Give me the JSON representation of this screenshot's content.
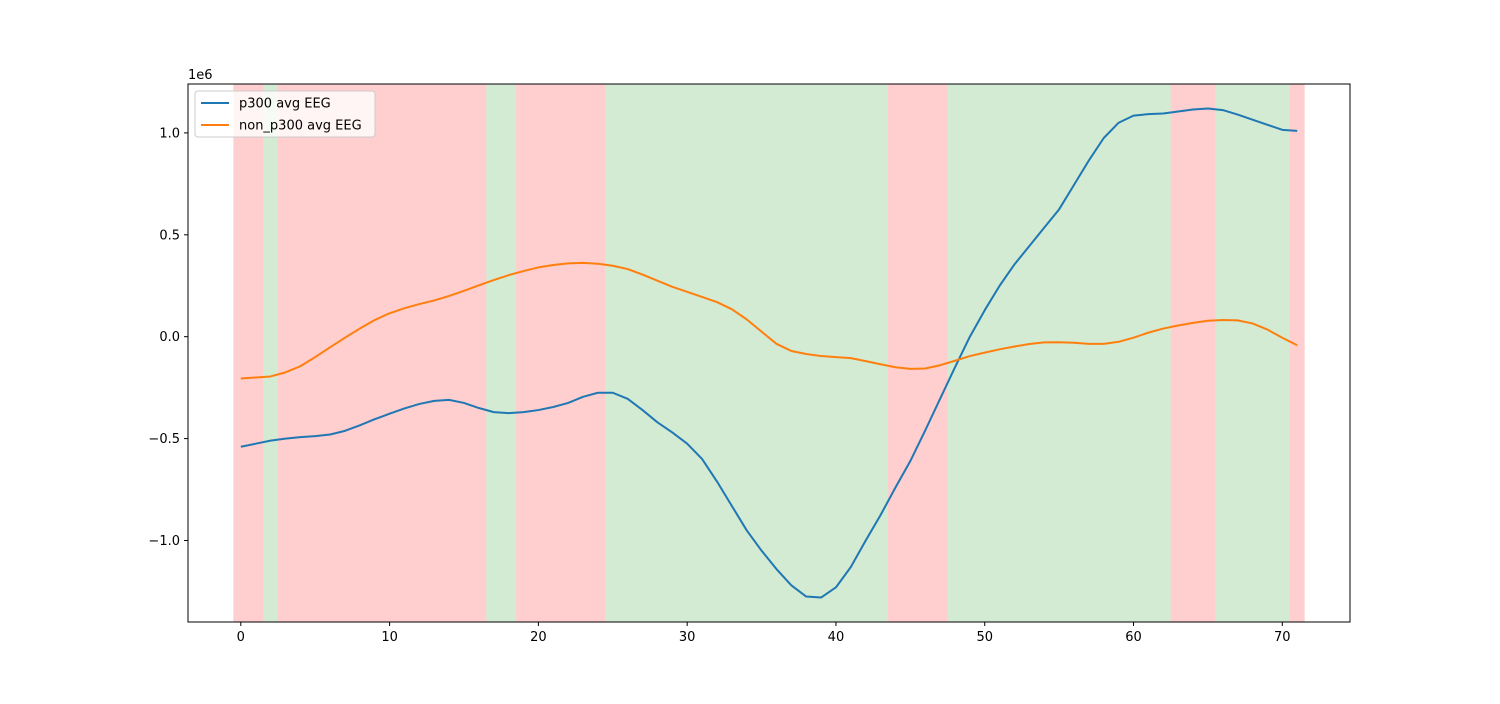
{
  "chart_data": {
    "type": "line",
    "title": "",
    "xlabel": "",
    "ylabel": "",
    "y_offset_label": "1e6",
    "xlim": [
      -3.55,
      74.55
    ],
    "ylim": [
      -1.4,
      1.24
    ],
    "x_ticks": [
      0,
      10,
      20,
      30,
      40,
      50,
      60,
      70
    ],
    "x_tick_labels": [
      "0",
      "10",
      "20",
      "30",
      "40",
      "50",
      "60",
      "70"
    ],
    "y_ticks": [
      -1.0,
      -0.5,
      0.0,
      0.5,
      1.0
    ],
    "y_tick_labels": [
      "−1.0",
      "−0.5",
      "0.0",
      "0.5",
      "1.0"
    ],
    "grid": false,
    "legend_position": "top-left",
    "background_bands": {
      "description_colors": {
        "red": "#ff9999",
        "green": "#a3d3a3"
      },
      "segments": [
        {
          "start": -0.5,
          "end": 1.5,
          "color": "red"
        },
        {
          "start": 1.5,
          "end": 2.5,
          "color": "green"
        },
        {
          "start": 2.5,
          "end": 16.5,
          "color": "red"
        },
        {
          "start": 16.5,
          "end": 18.5,
          "color": "green"
        },
        {
          "start": 18.5,
          "end": 24.5,
          "color": "red"
        },
        {
          "start": 24.5,
          "end": 43.5,
          "color": "green"
        },
        {
          "start": 43.5,
          "end": 47.5,
          "color": "red"
        },
        {
          "start": 47.5,
          "end": 62.5,
          "color": "green"
        },
        {
          "start": 62.5,
          "end": 65.5,
          "color": "red"
        },
        {
          "start": 65.5,
          "end": 70.5,
          "color": "green"
        },
        {
          "start": 70.5,
          "end": 71.5,
          "color": "red"
        }
      ]
    },
    "series": [
      {
        "name": "p300 avg EEG",
        "color": "#1f77b4",
        "x": [
          0,
          1,
          2,
          3,
          4,
          5,
          6,
          7,
          8,
          9,
          10,
          11,
          12,
          13,
          14,
          15,
          16,
          17,
          18,
          19,
          20,
          21,
          22,
          23,
          24,
          25,
          26,
          27,
          28,
          29,
          30,
          31,
          32,
          33,
          34,
          35,
          36,
          37,
          38,
          39,
          40,
          41,
          42,
          43,
          44,
          45,
          46,
          47,
          48,
          49,
          50,
          51,
          52,
          53,
          54,
          55,
          56,
          57,
          58,
          59,
          60,
          61,
          62,
          63,
          64,
          65,
          66,
          67,
          68,
          69,
          70,
          71
        ],
        "values": [
          -0.54,
          -0.525,
          -0.51,
          -0.5,
          -0.493,
          -0.488,
          -0.48,
          -0.462,
          -0.435,
          -0.405,
          -0.378,
          -0.352,
          -0.33,
          -0.315,
          -0.31,
          -0.325,
          -0.35,
          -0.37,
          -0.375,
          -0.37,
          -0.36,
          -0.345,
          -0.325,
          -0.295,
          -0.275,
          -0.275,
          -0.305,
          -0.36,
          -0.42,
          -0.47,
          -0.525,
          -0.6,
          -0.71,
          -0.83,
          -0.95,
          -1.05,
          -1.14,
          -1.22,
          -1.275,
          -1.28,
          -1.23,
          -1.13,
          -1.0,
          -0.875,
          -0.74,
          -0.61,
          -0.46,
          -0.305,
          -0.15,
          0.0,
          0.13,
          0.25,
          0.355,
          0.445,
          0.535,
          0.625,
          0.745,
          0.865,
          0.975,
          1.05,
          1.085,
          1.092,
          1.095,
          1.105,
          1.115,
          1.12,
          1.112,
          1.09,
          1.065,
          1.04,
          1.015,
          1.01
        ]
      },
      {
        "name": "non_p300 avg EEG",
        "color": "#ff7f0e",
        "x": [
          0,
          1,
          2,
          3,
          4,
          5,
          6,
          7,
          8,
          9,
          10,
          11,
          12,
          13,
          14,
          15,
          16,
          17,
          18,
          19,
          20,
          21,
          22,
          23,
          24,
          25,
          26,
          27,
          28,
          29,
          30,
          31,
          32,
          33,
          34,
          35,
          36,
          37,
          38,
          39,
          40,
          41,
          42,
          43,
          44,
          45,
          46,
          47,
          48,
          49,
          50,
          51,
          52,
          53,
          54,
          55,
          56,
          57,
          58,
          59,
          60,
          61,
          62,
          63,
          64,
          65,
          66,
          67,
          68,
          69,
          70,
          71
        ],
        "values": [
          -0.205,
          -0.2,
          -0.195,
          -0.175,
          -0.145,
          -0.1,
          -0.052,
          -0.005,
          0.04,
          0.082,
          0.115,
          0.14,
          0.16,
          0.178,
          0.2,
          0.225,
          0.252,
          0.278,
          0.302,
          0.322,
          0.34,
          0.352,
          0.36,
          0.362,
          0.358,
          0.348,
          0.332,
          0.305,
          0.275,
          0.245,
          0.22,
          0.195,
          0.17,
          0.135,
          0.085,
          0.025,
          -0.035,
          -0.07,
          -0.085,
          -0.095,
          -0.1,
          -0.105,
          -0.12,
          -0.135,
          -0.15,
          -0.158,
          -0.156,
          -0.14,
          -0.118,
          -0.095,
          -0.078,
          -0.062,
          -0.048,
          -0.036,
          -0.028,
          -0.027,
          -0.03,
          -0.035,
          -0.035,
          -0.025,
          -0.005,
          0.02,
          0.04,
          0.055,
          0.068,
          0.078,
          0.082,
          0.08,
          0.065,
          0.035,
          -0.005,
          -0.042
        ]
      }
    ]
  }
}
